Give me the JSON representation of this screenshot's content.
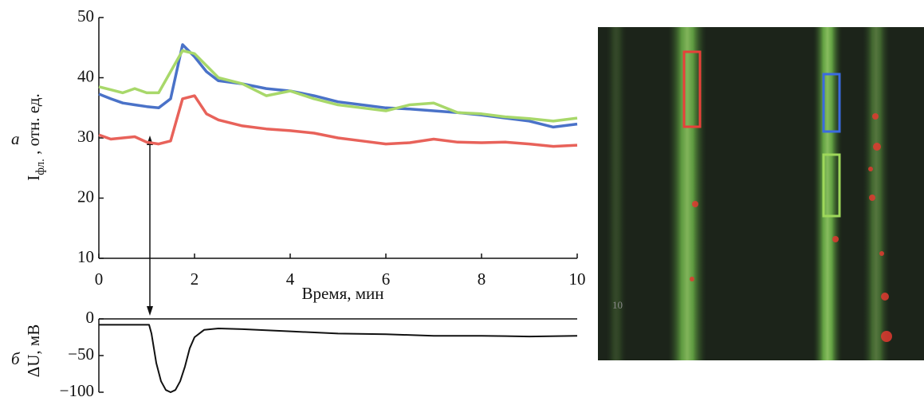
{
  "chart_data": [
    {
      "type": "line",
      "panel_label": "а",
      "xlabel": "Время, мин",
      "ylabel": "I",
      "ylabel_sub": "фл.",
      "ylabel_rest": " , отн. ед.",
      "x": [
        0,
        0.25,
        0.5,
        0.75,
        1,
        1.25,
        1.5,
        1.75,
        2,
        2.25,
        2.5,
        3,
        3.5,
        4,
        4.5,
        5,
        5.5,
        6,
        6.5,
        7,
        7.5,
        8,
        8.5,
        9,
        9.5,
        10
      ],
      "series": [
        {
          "color": "#e8625a",
          "values": [
            30.5,
            29.8,
            30,
            30.2,
            29.3,
            29,
            29.5,
            36.5,
            37,
            34,
            33,
            32,
            31.5,
            31.2,
            30.8,
            30,
            29.5,
            29,
            29.2,
            29.8,
            29.3,
            29.2,
            29.3,
            29,
            28.6,
            28.8
          ]
        },
        {
          "color": "#4a72c8",
          "values": [
            37.3,
            36.5,
            35.8,
            35.5,
            35.2,
            35.0,
            36.5,
            45.5,
            43.5,
            41,
            39.5,
            39,
            38.2,
            37.8,
            37,
            36,
            35.5,
            35,
            34.8,
            34.5,
            34.2,
            33.8,
            33.3,
            32.8,
            31.8,
            32.3
          ]
        },
        {
          "color": "#a8d86a",
          "values": [
            38.5,
            38,
            37.5,
            38.2,
            37.5,
            37.5,
            41,
            44.5,
            44,
            42,
            40,
            39,
            37,
            37.8,
            36.5,
            35.5,
            35,
            34.5,
            35.5,
            35.8,
            34.2,
            34,
            33.5,
            33.2,
            32.8,
            33.3
          ]
        }
      ],
      "xlim": [
        0,
        10
      ],
      "xticks": [
        0,
        2,
        4,
        6,
        8,
        10
      ],
      "ylim": [
        10,
        50
      ],
      "yticks": [
        10,
        20,
        30,
        40,
        50
      ],
      "grid": false
    },
    {
      "type": "line",
      "panel_label": "б",
      "ylabel": "ΔU, мВ",
      "x": [
        0,
        1.05,
        1.1,
        1.2,
        1.3,
        1.4,
        1.5,
        1.6,
        1.7,
        1.8,
        1.9,
        2,
        2.2,
        2.5,
        3,
        4,
        5,
        6,
        7,
        8,
        9,
        10
      ],
      "series": [
        {
          "color": "#111111",
          "values": [
            -8,
            -8,
            -20,
            -60,
            -85,
            -97,
            -100,
            -97,
            -85,
            -65,
            -40,
            -25,
            -15,
            -13,
            -14,
            -17,
            -20,
            -21,
            -23,
            -23,
            -24,
            -23
          ]
        }
      ],
      "xlim": [
        0,
        10
      ],
      "ylim": [
        -100,
        0
      ],
      "yticks": [
        {
          "value": -100,
          "label": "−100"
        },
        {
          "value": -50,
          "label": "−50"
        },
        0
      ],
      "grid": false
    }
  ],
  "image": {
    "label": "10"
  }
}
